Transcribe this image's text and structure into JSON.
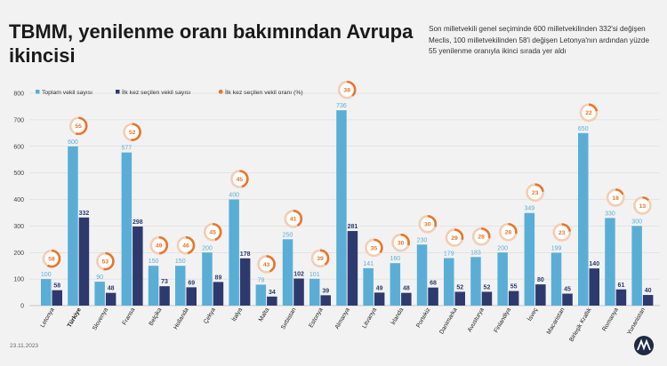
{
  "title": "TBMM, yenilenme oranı bakımından Avrupa ikincisi",
  "description": "Son milletvekili genel seçiminde 600 milletvekilinden 332'si değişen Meclis, 100 milletvekilinden 58'i değişen Letonya'nın ardından yüzde 55 yenilenme oranıyla ikinci sırada yer aldı",
  "date": "23.11.2023",
  "colors": {
    "total": "#5aaed6",
    "new": "#2e3a6e",
    "rate": "#e8762c",
    "rate_light": "#f3cdb3",
    "highlight": "#d9232e"
  },
  "chart_data": {
    "type": "bar",
    "categories": [
      "Letonya",
      "Türkiye",
      "Slovenya",
      "Fransa",
      "Belçika",
      "Hollanda",
      "Çekya",
      "İtalya",
      "Malta",
      "Sırbistan",
      "Estonya",
      "Almanya",
      "Litvanya",
      "İrlanda",
      "Portekiz",
      "Danimarka",
      "Avusturya",
      "Finlandiya",
      "İsveç",
      "Macaristan",
      "Birleşik Krallık",
      "Romanya",
      "Yunanistan"
    ],
    "highlight_category": "Türkiye",
    "series": [
      {
        "name": "Toplam vekil sayısı",
        "values": [
          100,
          600,
          90,
          577,
          150,
          150,
          200,
          400,
          79,
          250,
          101,
          736,
          141,
          160,
          230,
          179,
          183,
          200,
          349,
          199,
          650,
          330,
          300
        ]
      },
      {
        "name": "İlk kez seçilen vekil sayısı",
        "values": [
          58,
          332,
          48,
          298,
          73,
          69,
          89,
          178,
          34,
          102,
          39,
          281,
          49,
          48,
          68,
          52,
          52,
          55,
          80,
          45,
          140,
          61,
          40
        ]
      },
      {
        "name": "İlk kez seçilen vekil oranı (%)",
        "values": [
          58,
          55,
          53,
          52,
          49,
          46,
          45,
          45,
          43,
          41,
          39,
          38,
          35,
          30,
          30,
          29,
          28,
          28,
          23,
          23,
          22,
          18,
          13
        ]
      }
    ],
    "yticks": [
      0,
      100,
      200,
      300,
      400,
      500,
      600,
      700,
      800
    ],
    "ylim": [
      0,
      800
    ],
    "grid": true,
    "legend": "top-left"
  }
}
